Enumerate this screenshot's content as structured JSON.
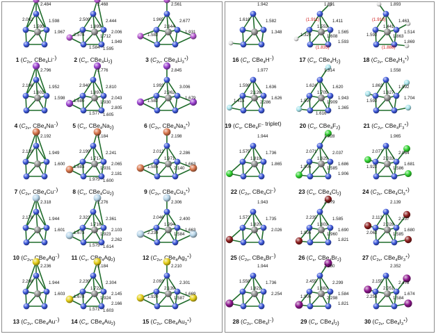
{
  "colors": {
    "bond": "#1e6b2a",
    "Be": "#3b56d9",
    "C": "#8e8e8e",
    "H": "#e3e3e3",
    "Li": "#b455cf",
    "Na": "#9a3fcf",
    "Cu": "#d7744a",
    "Ag": "#b8d6ea",
    "Au": "#e3cd16",
    "F": "#a8e4ec",
    "Cl": "#2fd12f",
    "Br": "#8c1d1d",
    "I": "#8c168c"
  },
  "molecules": [
    {
      "panel": "left",
      "num": "1",
      "sym": "C",
      "symsub": "2v",
      "formula": "CBe",
      "fsub": "4",
      "tail": "Li",
      "charge": "−",
      "labels": [
        "2.484",
        "2.062",
        "1.598",
        "1.967",
        "1.595"
      ]
    },
    {
      "panel": "left",
      "num": "2",
      "sym": "C",
      "symsub": "s",
      "formula": "CBe",
      "fsub": "4",
      "tail": "Li",
      "tsub": "2",
      "labels": [
        "2.468",
        "2.509",
        "2.444",
        "2.006",
        "1.895",
        "2.574",
        "1.712",
        "1.949",
        "1.584",
        "1.595"
      ]
    },
    {
      "panel": "left",
      "num": "3",
      "sym": "C",
      "symsub": "2v",
      "formula": "CBe",
      "fsub": "4",
      "tail": "Li",
      "tsub": "3",
      "charge": "+",
      "labels": [
        "2.561",
        "1.965",
        "2.677",
        "1.931",
        "2.644",
        "1.582"
      ]
    },
    {
      "panel": "left",
      "num": "4",
      "sym": "C",
      "symsub": "2v",
      "formula": "CBe",
      "fsub": "4",
      "tail": "Na",
      "charge": "−",
      "labels": [
        "2.796",
        "2.106",
        "1.952",
        "1.598",
        "1.601"
      ]
    },
    {
      "panel": "left",
      "num": "5",
      "sym": "C",
      "symsub": "s",
      "formula": "CBe",
      "fsub": "4",
      "tail": "Na",
      "tsub": "2",
      "labels": [
        "2.776",
        "2.940",
        "2.810",
        "2.043",
        "1.897",
        "1.680",
        "1.930",
        "2.805",
        "1.577",
        "1.605"
      ]
    },
    {
      "panel": "left",
      "num": "6",
      "sym": "C",
      "symsub": "2v",
      "formula": "CBe",
      "fsub": "4",
      "tail": "Na",
      "tsub": "3",
      "charge": "+",
      "labels": [
        "2.845",
        "1.993",
        "3.006",
        "1.679",
        "2.962",
        "1.582"
      ]
    },
    {
      "panel": "left",
      "num": "7",
      "sym": "C",
      "symsub": "2v",
      "formula": "CBe",
      "fsub": "4",
      "tail": "Cu",
      "charge": "−",
      "labels": [
        "2.192",
        "2.139",
        "1.949",
        "1.600"
      ]
    },
    {
      "panel": "left",
      "num": "8",
      "sym": "C",
      "symsub": "s",
      "formula": "CBe",
      "fsub": "4",
      "tail": "Cu",
      "tsub": "2",
      "labels": [
        "2.184",
        "2.199",
        "2.241",
        "2.065",
        "1.717",
        "1.683",
        "1.931",
        "2.181",
        "1.975",
        "1.600"
      ]
    },
    {
      "panel": "left",
      "num": "9",
      "sym": "C",
      "symsub": "2v",
      "formula": "CBe",
      "fsub": "4",
      "tail": "Cu",
      "tsub": "3",
      "charge": "+",
      "labels": [
        "2.198",
        "2.012",
        "2.286",
        "1.663",
        "1.971",
        "1.585",
        "2.140"
      ]
    },
    {
      "panel": "left",
      "num": "10",
      "sym": "C",
      "symsub": "2v",
      "formula": "CBe",
      "fsub": "4",
      "tail": "Ag",
      "charge": "−",
      "labels": [
        "2.318",
        "2.178",
        "1.944",
        "1.601"
      ]
    },
    {
      "panel": "left",
      "num": "11",
      "sym": "C",
      "symsub": "s",
      "formula": "CBe",
      "fsub": "4",
      "tail": "Ag",
      "tsub": "2",
      "labels": [
        "2.276",
        "2.323",
        "2.361",
        "2.103",
        "1.716",
        "1.673",
        "1.923",
        "2.262",
        "1.575",
        "1.614"
      ]
    },
    {
      "panel": "left",
      "num": "12",
      "sym": "C",
      "symsub": "2v",
      "formula": "CBe",
      "fsub": "4",
      "tail": "Ag",
      "tsub": "3",
      "charge": "+",
      "labels": [
        "2.306",
        "2.046",
        "2.400",
        "1.663",
        "1.994",
        "2.239",
        "1.584"
      ]
    },
    {
      "panel": "left",
      "num": "13",
      "sym": "C",
      "symsub": "2v",
      "formula": "CBe",
      "fsub": "4",
      "tail": "Au",
      "charge": "−",
      "labels": [
        "2.236",
        "2.208",
        "1.944",
        "1.603"
      ]
    },
    {
      "panel": "left",
      "num": "14",
      "sym": "C",
      "symsub": "s",
      "formula": "CBe",
      "fsub": "4",
      "tail": "Au",
      "tsub": "2",
      "labels": [
        "2.184",
        "2.239",
        "2.304",
        "2.145",
        "1.722",
        "1.678",
        "1.924",
        "2.166",
        "1.571",
        "1.603"
      ]
    },
    {
      "panel": "left",
      "num": "15",
      "sym": "C",
      "symsub": "2v",
      "formula": "CBe",
      "fsub": "4",
      "tail": "Au",
      "tsub": "3",
      "charge": "+",
      "labels": [
        "2.210",
        "2.093",
        "2.301",
        "1.669",
        "2.139",
        "1.920",
        "1.587"
      ]
    },
    {
      "panel": "right",
      "num": "16",
      "sym": "C",
      "symsub": "s",
      "formula": "CBe",
      "fsub": "4",
      "tail": "H",
      "charge": "−",
      "labels": [
        "1.942",
        "1.618",
        "1.582",
        "1.348"
      ]
    },
    {
      "panel": "right",
      "num": "17",
      "sym": "C",
      "symsub": "s",
      "formula": "CBe",
      "fsub": "4",
      "tail": "H",
      "tsub": "2",
      "labels": [
        "1.891",
        "(1.911)",
        "1.411",
        "1.565",
        "1.553",
        "1.329",
        "1.608",
        "1.593",
        "(1.835)"
      ],
      "redIdx": [
        1,
        8
      ]
    },
    {
      "panel": "right",
      "num": "18",
      "sym": "C",
      "symsub": "2v",
      "formula": "CBe",
      "fsub": "4",
      "tail": "H",
      "tsub": "3",
      "charge": "+",
      "labels": [
        "1.893",
        "(1.910)",
        "1.463",
        "1.514",
        "1.441",
        "1.592",
        "1.863",
        "1.869",
        "(1.888)"
      ],
      "redIdx": [
        1,
        8
      ]
    },
    {
      "panel": "right",
      "num": "19",
      "sym": "C",
      "symsub": "s",
      "formula": "CBe",
      "fsub": "4",
      "tail": "F",
      "charge": "−",
      "note": " triplet",
      "labels": [
        "1.977",
        "1.598",
        "1.636",
        "1.626",
        "2.126",
        "1.413",
        "2.286"
      ]
    },
    {
      "panel": "right",
      "num": "20",
      "sym": "C",
      "symsub": "s",
      "formula": "CBe",
      "fsub": "4",
      "tail": "F",
      "tsub": "2",
      "labels": [
        "1.514",
        "1.624",
        "1.620",
        "1.943",
        "1.705",
        "1.597",
        "1.909",
        "1.365",
        "1.616"
      ]
    },
    {
      "panel": "right",
      "num": "21",
      "sym": "C",
      "symsub": "2v",
      "formula": "CBe",
      "fsub": "4",
      "tail": "F",
      "tsub": "3",
      "charge": "+",
      "labels": [
        "1.558",
        "1.863",
        "1.592",
        "1.704",
        "1.627",
        "1.592"
      ]
    },
    {
      "panel": "right",
      "num": "22",
      "sym": "C",
      "symsub": "2v",
      "formula": "CBe",
      "fsub": "4",
      "tail": "Cl",
      "charge": "−",
      "labels": [
        "1.944",
        "1.575",
        "1.736",
        "1.865",
        "1.819"
      ]
    },
    {
      "panel": "right",
      "num": "23",
      "sym": "C",
      "symsub": "s",
      "formula": "CBe",
      "fsub": "4",
      "tail": "Cl",
      "tsub": "2",
      "labels": [
        "1.928",
        "2.071",
        "2.037",
        "1.686",
        "1.625",
        "1.906",
        "1.585",
        "1.906"
      ]
    },
    {
      "panel": "right",
      "num": "24",
      "sym": "C",
      "symsub": "2v",
      "formula": "CBe",
      "fsub": "4",
      "tail": "Cl",
      "tsub": "3",
      "charge": "+",
      "labels": [
        "1.965",
        "2.077",
        "2.064",
        "1.681",
        "2.033",
        "1.922",
        "1.586"
      ]
    },
    {
      "panel": "right",
      "num": "25",
      "sym": "C",
      "symsub": "2v",
      "formula": "CBe",
      "fsub": "4",
      "tail": "Br",
      "charge": "−",
      "labels": [
        "1.943",
        "1.572",
        "1.735",
        "2.026",
        "1.820"
      ]
    },
    {
      "panel": "right",
      "num": "26",
      "sym": "C",
      "symsub": "s",
      "formula": "CBe",
      "fsub": "4",
      "tail": "Br",
      "tsub": "2",
      "labels": [
        "2.079",
        "2.235",
        "1.585",
        "1.690",
        "1.603",
        "1.906",
        "1.960",
        "1.821"
      ]
    },
    {
      "panel": "right",
      "num": "27",
      "sym": "C",
      "symsub": "2v",
      "formula": "CBe",
      "fsub": "4",
      "tail": "Br",
      "tsub": "3",
      "charge": "+",
      "labels": [
        "2.139",
        "2.113",
        "2.237",
        "1.680",
        "2.028",
        "2.062",
        "1.585"
      ]
    },
    {
      "panel": "right",
      "num": "28",
      "sym": "C",
      "symsub": "2v",
      "formula": "CBe",
      "fsub": "4",
      "tail": "I",
      "charge": "−",
      "labels": [
        "1.944",
        "1.558",
        "1.736",
        "2.254",
        "1.821"
      ]
    },
    {
      "panel": "right",
      "num": "29",
      "sym": "C",
      "symsub": "s",
      "formula": "CBe",
      "fsub": "4",
      "tail": "I",
      "tsub": "2",
      "labels": [
        "2.280",
        "2.455",
        "2.299",
        "1.584",
        "1.682",
        "1.906",
        "2.298",
        "1.821"
      ]
    },
    {
      "panel": "right",
      "num": "30",
      "sym": "C",
      "symsub": "2v",
      "formula": "CBe",
      "fsub": "4",
      "tail": "I",
      "tsub": "3",
      "charge": "+",
      "labels": [
        "2.352",
        "2.155",
        "2.478",
        "1.674",
        "2.051",
        "2.258",
        "1.584"
      ]
    }
  ]
}
